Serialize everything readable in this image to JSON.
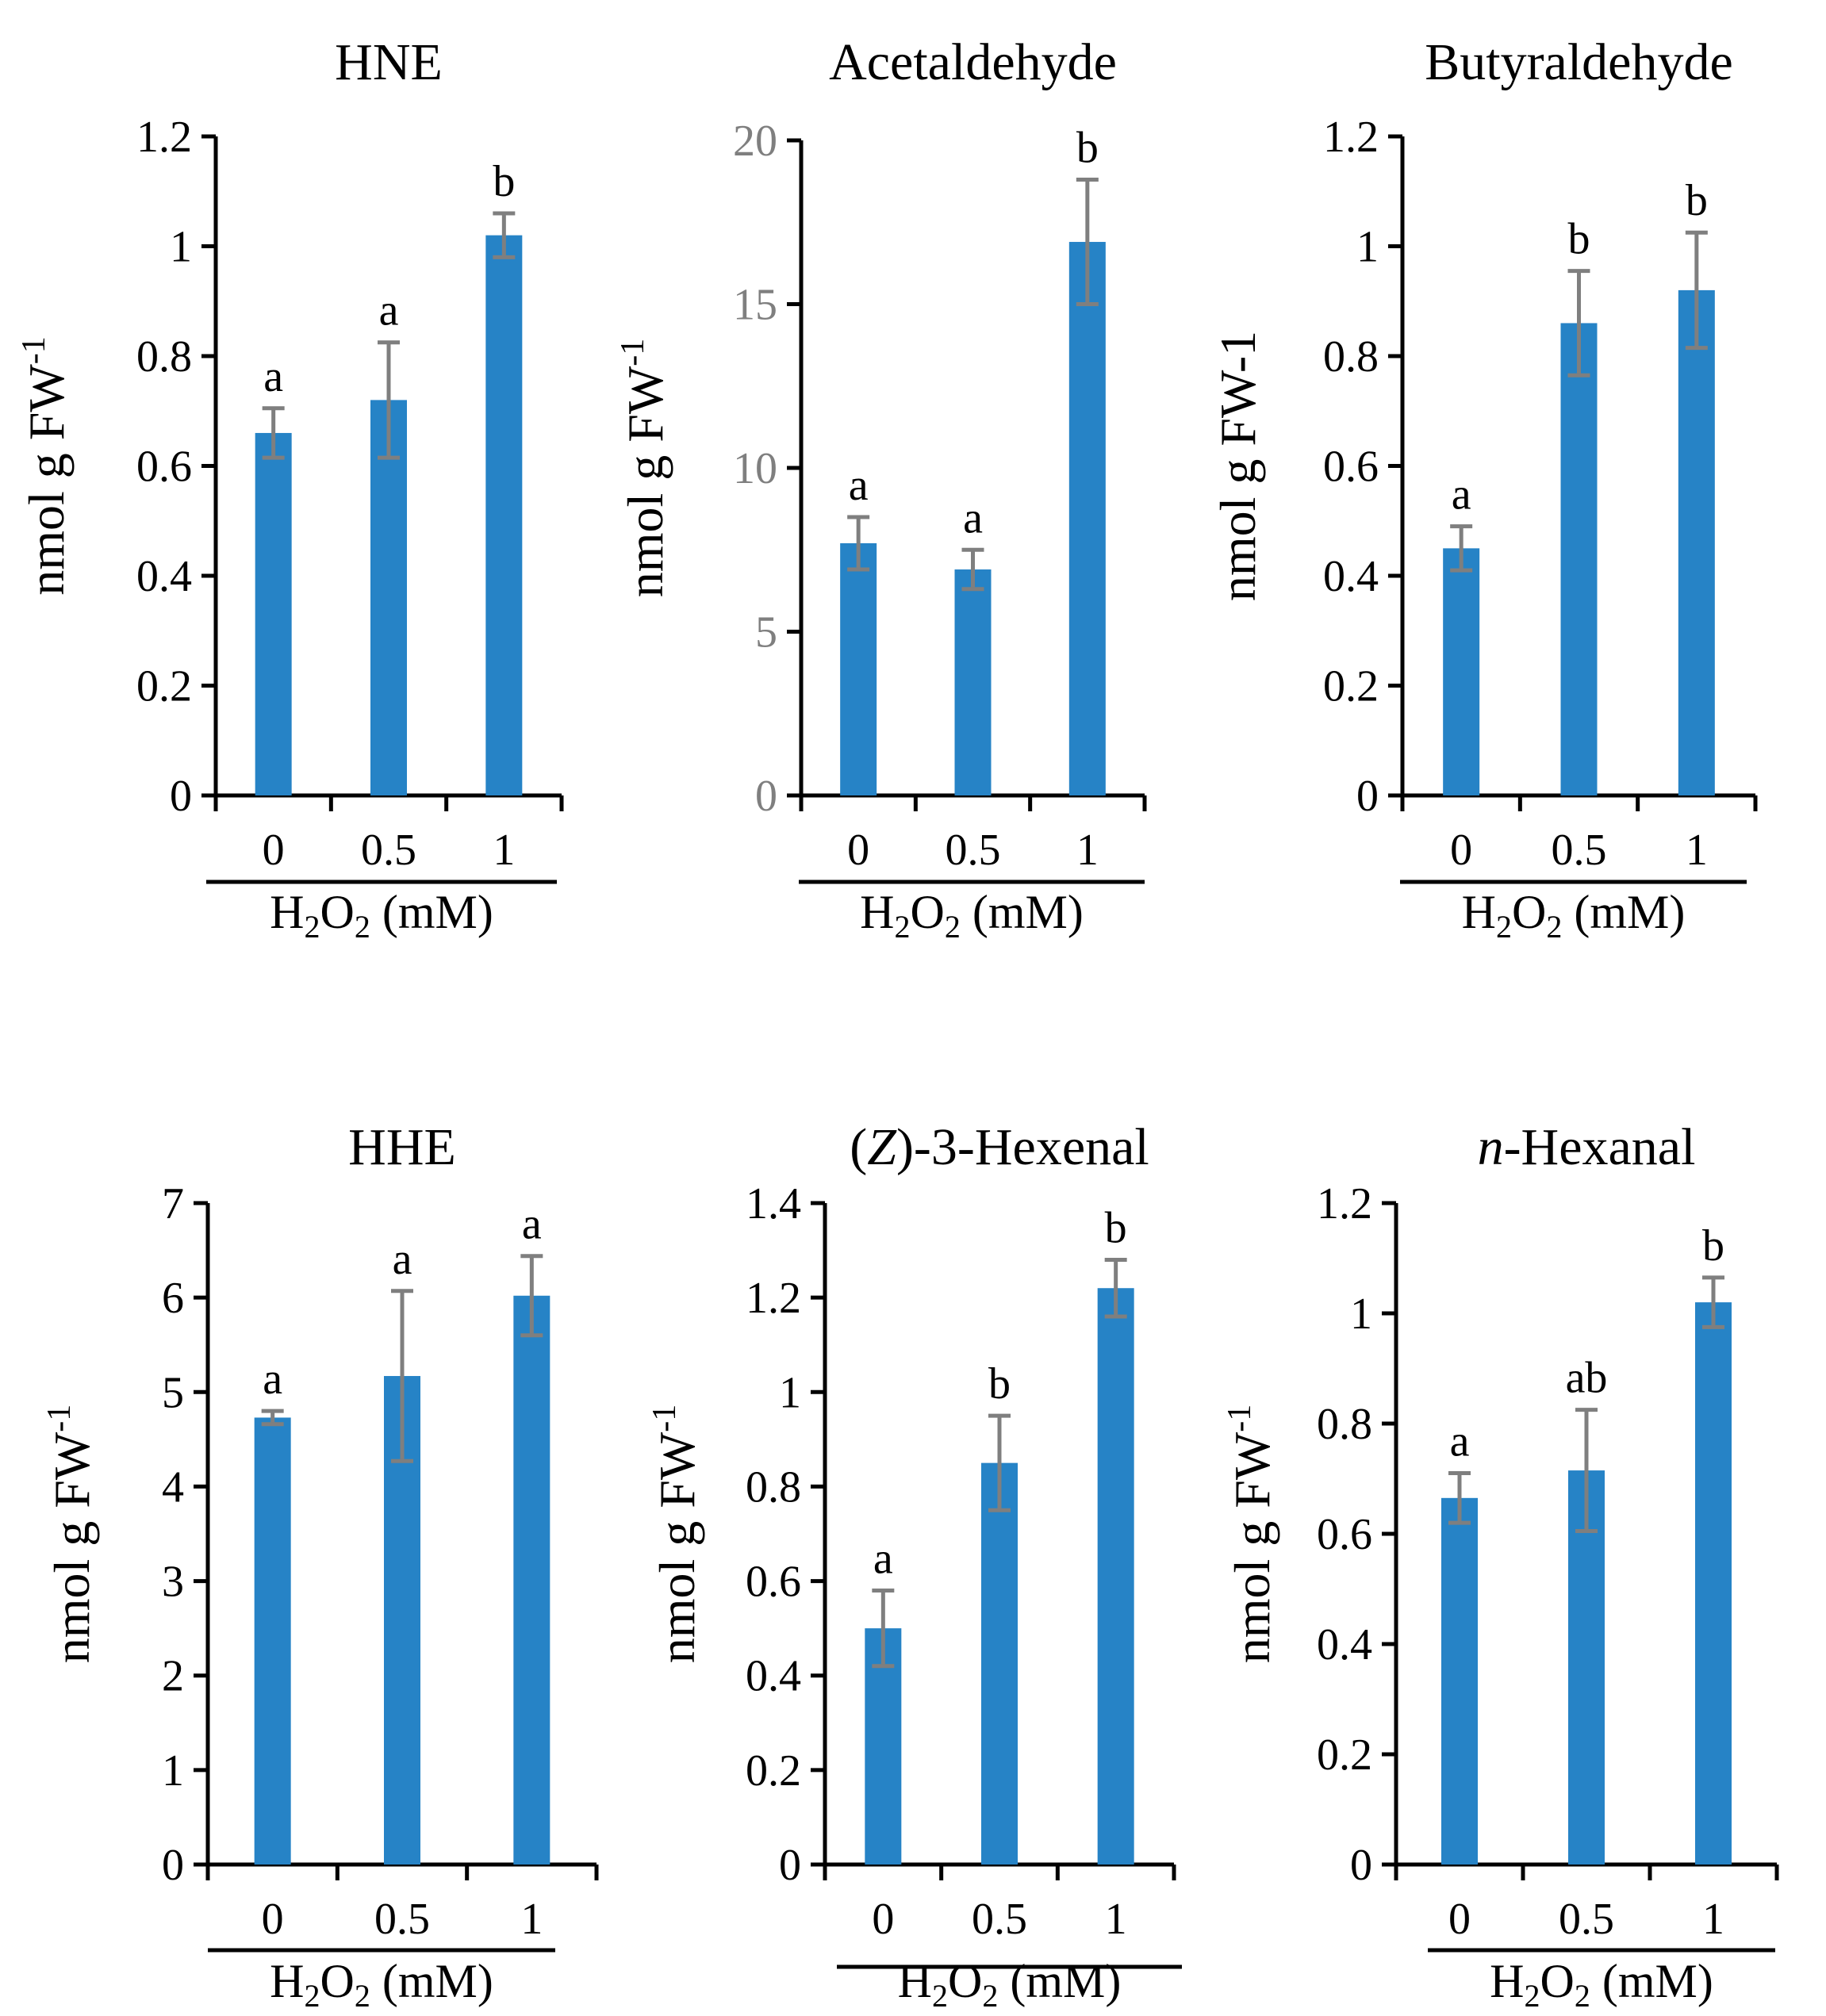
{
  "colors": {
    "bar": "#2683c6",
    "error_bar": "#7f7f7f",
    "axis": "#000000"
  },
  "chart_data": [
    {
      "type": "bar",
      "title": "HNE",
      "ylabel": "nmol g FW",
      "ylabel_sup": "-1",
      "xlabel_parts": [
        "H",
        "2",
        "O",
        "2",
        " (mM)"
      ],
      "categories": [
        "0",
        "0.5",
        "1"
      ],
      "values": [
        0.66,
        0.72,
        1.02
      ],
      "errors": [
        0.045,
        0.105,
        0.04
      ],
      "significance": [
        "a",
        "a",
        "b"
      ],
      "ylim": [
        0,
        1.2
      ],
      "yticks": [
        0,
        0.2,
        0.4,
        0.6,
        0.8,
        1,
        1.2
      ],
      "ytick_labels": [
        "0",
        "0.2",
        "0.4",
        "0.6",
        "0.8",
        "1",
        "1.2"
      ],
      "ytick_color": "#000000",
      "grid": false
    },
    {
      "type": "bar",
      "title": "Acetaldehyde",
      "ylabel": "nmol g FW",
      "ylabel_sup": "-1",
      "xlabel_parts": [
        "H",
        "2",
        "O",
        "2",
        " (mM)"
      ],
      "categories": [
        "0",
        "0.5",
        "1"
      ],
      "values": [
        7.7,
        6.9,
        16.9
      ],
      "errors": [
        0.8,
        0.6,
        1.9
      ],
      "significance": [
        "a",
        "a",
        "b"
      ],
      "ylim": [
        0,
        20
      ],
      "yticks": [
        0,
        5,
        10,
        15,
        20
      ],
      "ytick_labels": [
        "0",
        "5",
        "10",
        "15",
        "20"
      ],
      "ytick_color": "#7f7f7f",
      "grid": false
    },
    {
      "type": "bar",
      "title": "Butyraldehyde",
      "ylabel": "nmol g FW-1",
      "ylabel_sup": "",
      "xlabel_parts": [
        "H",
        "2",
        "O",
        "2",
        " (mM)"
      ],
      "categories": [
        "0",
        "0.5",
        "1"
      ],
      "values": [
        0.45,
        0.86,
        0.92
      ],
      "errors": [
        0.04,
        0.095,
        0.105
      ],
      "significance": [
        "a",
        "b",
        "b"
      ],
      "ylim": [
        0,
        1.2
      ],
      "yticks": [
        0,
        0.2,
        0.4,
        0.6,
        0.8,
        1,
        1.2
      ],
      "ytick_labels": [
        "0",
        "0.2",
        "0.4",
        "0.6",
        "0.8",
        "1",
        "1.2"
      ],
      "ytick_color": "#000000",
      "grid": false
    },
    {
      "type": "bar",
      "title": "HHE",
      "ylabel": "nmol g FW",
      "ylabel_sup": "-1",
      "xlabel_parts": [
        "H",
        "2",
        "O",
        "2",
        " (mM)"
      ],
      "categories": [
        "0",
        "0.5",
        "1"
      ],
      "values": [
        4.73,
        5.17,
        6.02
      ],
      "errors": [
        0.07,
        0.9,
        0.42
      ],
      "significance": [
        "a",
        "a",
        "a"
      ],
      "ylim": [
        0,
        7
      ],
      "yticks": [
        0,
        1,
        2,
        3,
        4,
        5,
        6,
        7
      ],
      "ytick_labels": [
        "0",
        "1",
        "2",
        "3",
        "4",
        "5",
        "6",
        "7"
      ],
      "ytick_color": "#000000",
      "grid": false
    },
    {
      "type": "bar",
      "title_italic": "Z",
      "title_prefix": "(",
      "title_suffix": ")-3-Hexenal",
      "ylabel": "nmol g FW",
      "ylabel_sup": "-1",
      "xlabel_parts": [
        "H",
        "2",
        "O",
        "2",
        " (mM)"
      ],
      "categories": [
        "0",
        "0.5",
        "1"
      ],
      "values": [
        0.5,
        0.85,
        1.22
      ],
      "errors": [
        0.08,
        0.1,
        0.06
      ],
      "significance": [
        "a",
        "b",
        "b"
      ],
      "ylim": [
        0,
        1.4
      ],
      "yticks": [
        0,
        0.2,
        0.4,
        0.6,
        0.8,
        1,
        1.2,
        1.4
      ],
      "ytick_labels": [
        "0",
        "0.2",
        "0.4",
        "0.6",
        "0.8",
        "1",
        "1.2",
        "1.4"
      ],
      "ytick_color": "#000000",
      "grid": false
    },
    {
      "type": "bar",
      "title_italic": "n",
      "title_prefix": "",
      "title_suffix": "-Hexanal",
      "ylabel": "nmol g FW",
      "ylabel_sup": "-1",
      "xlabel_parts": [
        "H",
        "2",
        "O",
        "2",
        " (mM)"
      ],
      "categories": [
        "0",
        "0.5",
        "1"
      ],
      "values": [
        0.665,
        0.715,
        1.02
      ],
      "errors": [
        0.045,
        0.11,
        0.045
      ],
      "significance": [
        "a",
        "ab",
        "b"
      ],
      "ylim": [
        0,
        1.2
      ],
      "yticks": [
        0,
        0.2,
        0.4,
        0.6,
        0.8,
        1,
        1.2
      ],
      "ytick_labels": [
        "0",
        "0.2",
        "0.4",
        "0.6",
        "0.8",
        "1",
        "1.2"
      ],
      "ytick_color": "#000000",
      "grid": false
    }
  ]
}
